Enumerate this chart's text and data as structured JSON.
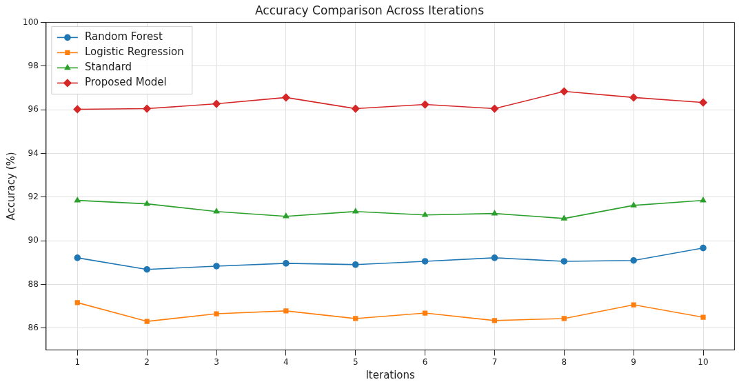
{
  "chart_data": {
    "type": "line",
    "title": "Accuracy Comparison Across Iterations",
    "xlabel": "Iterations",
    "ylabel": "Accuracy (%)",
    "x": [
      1,
      2,
      3,
      4,
      5,
      6,
      7,
      8,
      9,
      10
    ],
    "series": [
      {
        "name": "Random Forest",
        "color": "#1f77b4",
        "marker": "circle",
        "values": [
          89.22,
          88.69,
          88.84,
          88.97,
          88.91,
          89.06,
          89.22,
          89.06,
          89.1,
          89.67
        ]
      },
      {
        "name": "Logistic Regression",
        "color": "#ff7f0e",
        "marker": "square",
        "values": [
          87.17,
          86.31,
          86.66,
          86.79,
          86.44,
          86.69,
          86.35,
          86.44,
          87.07,
          86.5
        ]
      },
      {
        "name": "Standard",
        "color": "#2ca02c",
        "marker": "triangle",
        "values": [
          91.85,
          91.69,
          91.34,
          91.12,
          91.34,
          91.18,
          91.25,
          91.02,
          91.62,
          91.85
        ]
      },
      {
        "name": "Proposed Model",
        "color": "#d62728",
        "marker": "diamond",
        "values": [
          96.02,
          96.05,
          96.27,
          96.56,
          96.05,
          96.24,
          96.05,
          96.84,
          96.56,
          96.33
        ]
      }
    ],
    "xlim": [
      0.55,
      10.45
    ],
    "xticks": [
      1,
      2,
      3,
      4,
      5,
      6,
      7,
      8,
      9,
      10
    ],
    "ylim": [
      85,
      100
    ],
    "yticks": [
      86,
      88,
      90,
      92,
      94,
      96,
      98,
      100
    ],
    "grid": true,
    "legend": "top left",
    "line_style": "solid"
  }
}
